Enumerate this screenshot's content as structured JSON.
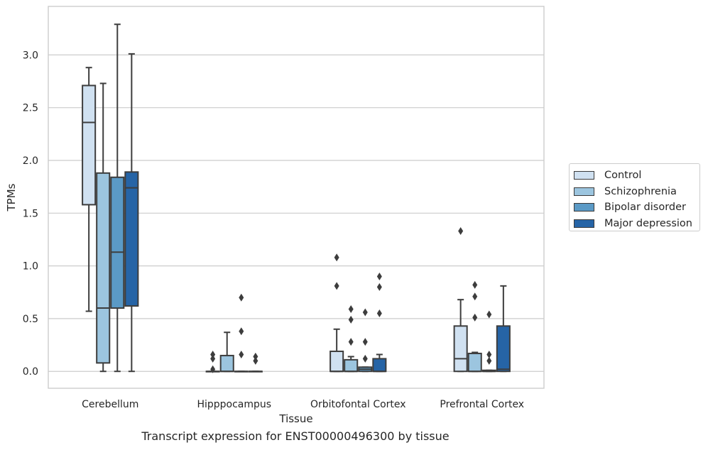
{
  "caption": "Transcript expression for ENST00000496300 by tissue",
  "chart_data": {
    "type": "boxplot",
    "xlabel": "Tissue",
    "ylabel": "TPMs",
    "ylim": [
      -0.16,
      3.46
    ],
    "yticks": [
      "0.0",
      "0.5",
      "1.0",
      "1.5",
      "2.0",
      "2.5",
      "3.0"
    ],
    "grid": "horizontal",
    "legend_position": "right",
    "categories": [
      "Cerebellum",
      "Hipppocampus",
      "Orbitofontal Cortex",
      "Prefrontal Cortex"
    ],
    "series": [
      {
        "name": "Control",
        "color": "#d0e1f1",
        "boxes": [
          {
            "q1": 1.58,
            "median": 2.36,
            "q3": 2.71,
            "whislo": 0.57,
            "whishi": 2.88,
            "fliers": []
          },
          {
            "q1": 0.0,
            "median": 0.0,
            "q3": 0.0,
            "whislo": 0.0,
            "whishi": 0.0,
            "fliers": [
              0.02,
              0.12,
              0.16
            ]
          },
          {
            "q1": 0.0,
            "median": 0.0,
            "q3": 0.19,
            "whislo": 0.0,
            "whishi": 0.4,
            "fliers": [
              0.81,
              1.08
            ]
          },
          {
            "q1": 0.0,
            "median": 0.12,
            "q3": 0.43,
            "whislo": 0.0,
            "whishi": 0.68,
            "fliers": [
              1.33
            ]
          }
        ]
      },
      {
        "name": "Schizophrenia",
        "color": "#9cc5df",
        "boxes": [
          {
            "q1": 0.08,
            "median": 0.6,
            "q3": 1.88,
            "whislo": 0.0,
            "whishi": 2.73,
            "fliers": []
          },
          {
            "q1": 0.0,
            "median": 0.0,
            "q3": 0.15,
            "whislo": 0.0,
            "whishi": 0.37,
            "fliers": []
          },
          {
            "q1": 0.0,
            "median": 0.0,
            "q3": 0.11,
            "whislo": 0.0,
            "whishi": 0.14,
            "fliers": [
              0.28,
              0.49,
              0.59
            ]
          },
          {
            "q1": 0.0,
            "median": 0.0,
            "q3": 0.17,
            "whislo": 0.0,
            "whishi": 0.18,
            "fliers": [
              0.51,
              0.71,
              0.82
            ]
          }
        ]
      },
      {
        "name": "Bipolar disorder",
        "color": "#5b9ac6",
        "boxes": [
          {
            "q1": 0.6,
            "median": 1.13,
            "q3": 1.84,
            "whislo": 0.0,
            "whishi": 3.29,
            "fliers": []
          },
          {
            "q1": 0.0,
            "median": 0.0,
            "q3": 0.0,
            "whislo": 0.0,
            "whishi": 0.0,
            "fliers": [
              0.16,
              0.38,
              0.7
            ]
          },
          {
            "q1": 0.0,
            "median": 0.02,
            "q3": 0.04,
            "whislo": 0.0,
            "whishi": 0.04,
            "fliers": [
              0.12,
              0.28,
              0.56
            ]
          },
          {
            "q1": 0.0,
            "median": 0.0,
            "q3": 0.01,
            "whislo": 0.0,
            "whishi": 0.01,
            "fliers": [
              0.1,
              0.16,
              0.54
            ]
          }
        ]
      },
      {
        "name": "Major depression",
        "color": "#2664a6",
        "boxes": [
          {
            "q1": 0.62,
            "median": 1.74,
            "q3": 1.89,
            "whislo": 0.0,
            "whishi": 3.01,
            "fliers": []
          },
          {
            "q1": 0.0,
            "median": 0.0,
            "q3": 0.0,
            "whislo": 0.0,
            "whishi": 0.0,
            "fliers": [
              0.1,
              0.14
            ]
          },
          {
            "q1": 0.0,
            "median": 0.0,
            "q3": 0.12,
            "whislo": 0.0,
            "whishi": 0.16,
            "fliers": [
              0.55,
              0.8,
              0.9
            ]
          },
          {
            "q1": 0.0,
            "median": 0.02,
            "q3": 0.43,
            "whislo": 0.0,
            "whishi": 0.81,
            "fliers": []
          }
        ]
      }
    ]
  }
}
